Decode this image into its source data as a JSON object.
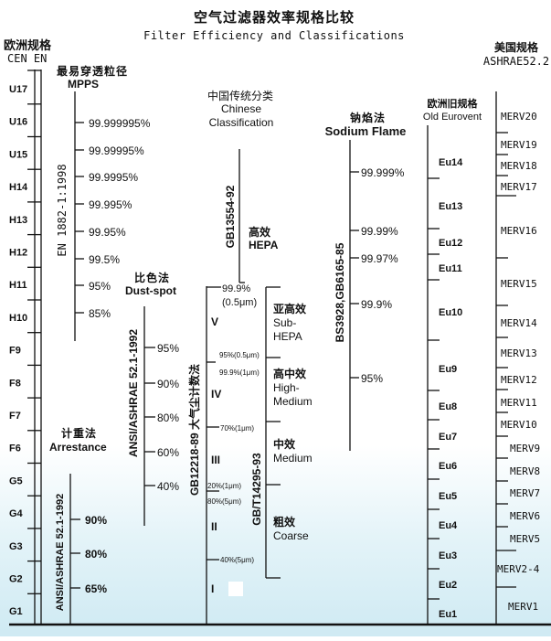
{
  "title": "空气过滤器效率规格比较",
  "subtitle": "Filter Efficiency and Classifications",
  "cen": {
    "header_cn": "欧洲规格",
    "header_en": "CEN EN",
    "classes": [
      "U17",
      "U16",
      "U15",
      "H14",
      "H13",
      "H12",
      "H11",
      "H10",
      "F9",
      "F8",
      "F7",
      "F6",
      "G5",
      "G4",
      "G3",
      "G2",
      "G1"
    ]
  },
  "mpps": {
    "header_cn": "最易穿透粒径",
    "header_en": "MPPS",
    "standard": "EN 1882-1:1998",
    "values": [
      "99.999995%",
      "99.99995%",
      "99.9995%",
      "99.995%",
      "99.95%",
      "99.5%",
      "95%",
      "85%"
    ]
  },
  "dust_spot": {
    "header_cn": "比色法",
    "header_en": "Dust-spot",
    "standard": "ANSI/ASHRAE 52.1-1992",
    "values": [
      "95%",
      "90%",
      "80%",
      "60%",
      "40%"
    ]
  },
  "arrestance": {
    "header_cn": "计重法",
    "header_en": "Arrestance",
    "standard": "ANSI/ASHRAE 52.1-1992",
    "values": [
      "90%",
      "80%",
      "65%"
    ]
  },
  "gb12218": {
    "standard": "GB12218-89  大气尘计数法",
    "top_value": "99.9%",
    "top_size": "(0.5μm)",
    "marks": [
      "95%(0.5μm)",
      "99.9%(1μm)",
      "70%(1μm)",
      "20%(1μm)",
      "80%(5μm)",
      "40%(5μm)"
    ],
    "grades": [
      "V",
      "IV",
      "III",
      "II",
      "I"
    ]
  },
  "chinese": {
    "header_cn": "中国传统分类",
    "header_en_1": "Chinese",
    "header_en_2": "Classification",
    "standard": "GB13554-92",
    "hepa_cn": "高效",
    "hepa_en": "HEPA"
  },
  "gbt14295": {
    "standard": "GB/T14295-93",
    "classes": [
      {
        "cn": "亚高效",
        "en1": "Sub-",
        "en2": "HEPA"
      },
      {
        "cn": "高中效",
        "en1": "High-",
        "en2": "Medium"
      },
      {
        "cn": "中效",
        "en1": "Medium",
        "en2": ""
      },
      {
        "cn": "粗效",
        "en1": "Coarse",
        "en2": ""
      }
    ]
  },
  "sodium": {
    "header_cn": "钠焰法",
    "header_en": "Sodium Flame",
    "standard": "BS3928,GB6165-85",
    "values": [
      "99.999%",
      "99.99%",
      "99.97%",
      "99.9%",
      "95%"
    ]
  },
  "eurovent": {
    "header_cn": "欧洲旧规格",
    "header_en": "Old Eurovent",
    "classes": [
      "Eu14",
      "Eu13",
      "Eu12",
      "Eu11",
      "Eu10",
      "Eu9",
      "Eu8",
      "Eu7",
      "Eu6",
      "Eu5",
      "Eu4",
      "Eu3",
      "Eu2",
      "Eu1"
    ]
  },
  "ashrae": {
    "header_cn": "美国规格",
    "header_en": "ASHRAE52.2",
    "classes": [
      "MERV20",
      "MERV19",
      "MERV18",
      "MERV17",
      "MERV16",
      "MERV15",
      "MERV14",
      "MERV13",
      "MERV12",
      "MERV11",
      "MERV10",
      "MERV9",
      "MERV8",
      "MERV7",
      "MERV6",
      "MERV5",
      "MERV2-4",
      "MERV1"
    ]
  }
}
